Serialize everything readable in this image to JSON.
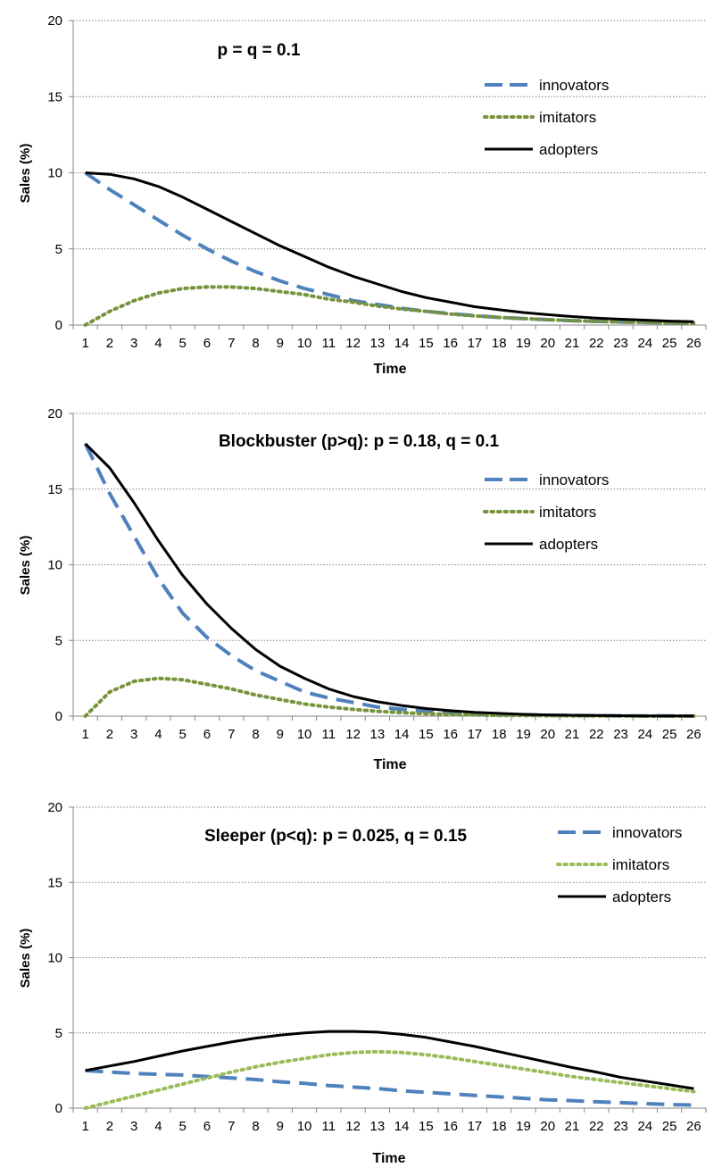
{
  "colors": {
    "innovators": "#4f81bd",
    "imitators_1": "#77933c",
    "imitators_3": "#9bbb59",
    "adopters": "#000000",
    "grid": "#7f7f7f",
    "axis": "#868686"
  },
  "chart_data": [
    {
      "type": "line",
      "title": "p = q = 0.1",
      "xlabel": "Time",
      "ylabel": "Sales  (%)",
      "ylim": [
        0,
        20
      ],
      "yticks": [
        "0",
        "5",
        "10",
        "15",
        "20"
      ],
      "x": [
        1,
        2,
        3,
        4,
        5,
        6,
        7,
        8,
        9,
        10,
        11,
        12,
        13,
        14,
        15,
        16,
        17,
        18,
        19,
        20,
        21,
        22,
        23,
        24,
        25,
        26
      ],
      "grid": true,
      "legend_position": "top-right",
      "series": [
        {
          "name": "innovators",
          "style": "dashed",
          "values": [
            10.0,
            8.9,
            7.9,
            6.9,
            5.9,
            5.0,
            4.2,
            3.5,
            2.9,
            2.4,
            2.0,
            1.6,
            1.35,
            1.1,
            0.9,
            0.75,
            0.62,
            0.5,
            0.42,
            0.35,
            0.29,
            0.24,
            0.2,
            0.17,
            0.15,
            0.12
          ]
        },
        {
          "name": "imitators",
          "style": "dotted",
          "values": [
            0.0,
            0.9,
            1.6,
            2.1,
            2.4,
            2.5,
            2.5,
            2.4,
            2.2,
            2.0,
            1.7,
            1.5,
            1.25,
            1.05,
            0.9,
            0.72,
            0.6,
            0.5,
            0.42,
            0.35,
            0.29,
            0.24,
            0.2,
            0.17,
            0.14,
            0.12
          ]
        },
        {
          "name": "adopters",
          "style": "solid",
          "values": [
            10.0,
            9.9,
            9.6,
            9.1,
            8.4,
            7.6,
            6.8,
            6.0,
            5.2,
            4.5,
            3.8,
            3.2,
            2.7,
            2.2,
            1.8,
            1.5,
            1.2,
            1.0,
            0.82,
            0.68,
            0.56,
            0.46,
            0.38,
            0.32,
            0.26,
            0.22
          ]
        }
      ]
    },
    {
      "type": "line",
      "title": "Blockbuster (p>q):  p = 0.18, q = 0.1",
      "xlabel": "Time",
      "ylabel": "Sales  (%)",
      "ylim": [
        0,
        20
      ],
      "yticks": [
        "0",
        "5",
        "10",
        "15",
        "20"
      ],
      "x": [
        1,
        2,
        3,
        4,
        5,
        6,
        7,
        8,
        9,
        10,
        11,
        12,
        13,
        14,
        15,
        16,
        17,
        18,
        19,
        20,
        21,
        22,
        23,
        24,
        25,
        26
      ],
      "grid": true,
      "legend_position": "top-right",
      "series": [
        {
          "name": "innovators",
          "style": "dashed",
          "values": [
            18.0,
            14.7,
            11.9,
            9.1,
            6.8,
            5.2,
            4.0,
            3.0,
            2.3,
            1.6,
            1.2,
            0.9,
            0.6,
            0.45,
            0.32,
            0.23,
            0.16,
            0.11,
            0.08,
            0.05,
            0.04,
            0.03,
            0.02,
            0.01,
            0.01,
            0.0
          ]
        },
        {
          "name": "imitators",
          "style": "dotted",
          "values": [
            0.0,
            1.6,
            2.3,
            2.5,
            2.4,
            2.1,
            1.8,
            1.4,
            1.1,
            0.8,
            0.6,
            0.45,
            0.32,
            0.23,
            0.16,
            0.11,
            0.08,
            0.05,
            0.04,
            0.03,
            0.02,
            0.01,
            0.01,
            0.0,
            0.0,
            0.0
          ]
        },
        {
          "name": "adopters",
          "style": "solid",
          "values": [
            18.0,
            16.4,
            14.1,
            11.6,
            9.3,
            7.4,
            5.8,
            4.4,
            3.3,
            2.5,
            1.8,
            1.3,
            0.95,
            0.7,
            0.5,
            0.36,
            0.25,
            0.18,
            0.12,
            0.08,
            0.06,
            0.04,
            0.03,
            0.02,
            0.01,
            0.01
          ]
        }
      ]
    },
    {
      "type": "line",
      "title": "Sleeper (p<q):  p = 0.025, q = 0.15",
      "xlabel": "Time",
      "ylabel": "Sales (%)",
      "ylim": [
        0,
        20
      ],
      "yticks": [
        "0",
        "5",
        "10",
        "15",
        "20"
      ],
      "x": [
        1,
        2,
        3,
        4,
        5,
        6,
        7,
        8,
        9,
        10,
        11,
        12,
        13,
        14,
        15,
        16,
        17,
        18,
        19,
        20,
        21,
        22,
        23,
        24,
        25,
        26
      ],
      "grid": true,
      "legend_position": "top-right",
      "series": [
        {
          "name": "innovators",
          "style": "dashed",
          "values": [
            2.5,
            2.4,
            2.3,
            2.25,
            2.2,
            2.1,
            2.0,
            1.9,
            1.75,
            1.65,
            1.5,
            1.4,
            1.3,
            1.15,
            1.05,
            0.95,
            0.85,
            0.75,
            0.65,
            0.55,
            0.5,
            0.42,
            0.36,
            0.3,
            0.24,
            0.2
          ]
        },
        {
          "name": "imitators",
          "style": "dotted",
          "values": [
            0.0,
            0.4,
            0.8,
            1.2,
            1.6,
            2.0,
            2.4,
            2.75,
            3.05,
            3.3,
            3.55,
            3.7,
            3.75,
            3.7,
            3.55,
            3.35,
            3.1,
            2.85,
            2.6,
            2.35,
            2.1,
            1.9,
            1.7,
            1.5,
            1.3,
            1.1
          ]
        },
        {
          "name": "adopters",
          "style": "solid",
          "values": [
            2.5,
            2.8,
            3.1,
            3.45,
            3.8,
            4.1,
            4.4,
            4.65,
            4.85,
            5.0,
            5.1,
            5.1,
            5.05,
            4.9,
            4.7,
            4.4,
            4.1,
            3.75,
            3.4,
            3.05,
            2.7,
            2.4,
            2.05,
            1.8,
            1.55,
            1.3
          ]
        }
      ]
    }
  ]
}
